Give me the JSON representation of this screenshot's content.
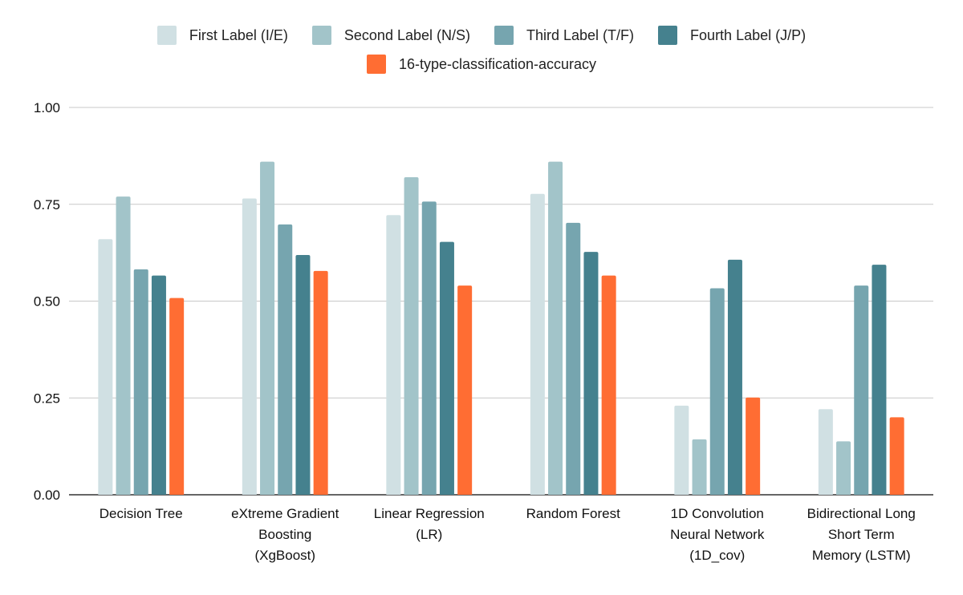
{
  "chart_data": {
    "type": "bar",
    "categories": [
      [
        "Decision Tree"
      ],
      [
        "eXtreme Gradient",
        "Boosting",
        "(XgBoost)"
      ],
      [
        "Linear Regression",
        "(LR)"
      ],
      [
        "Random Forest"
      ],
      [
        "1D Convolution",
        "Neural Network",
        "(1D_cov)"
      ],
      [
        "Bidirectional Long",
        "Short Term",
        "Memory (LSTM)"
      ]
    ],
    "series": [
      {
        "name": "First Label (I/E)",
        "color": "#d0e0e3",
        "values": [
          0.66,
          0.765,
          0.722,
          0.777,
          0.23,
          0.221
        ]
      },
      {
        "name": "Second Label (N/S)",
        "color": "#a2c4c9",
        "values": [
          0.77,
          0.86,
          0.82,
          0.86,
          0.143,
          0.138
        ]
      },
      {
        "name": "Third Label (T/F)",
        "color": "#76a5af",
        "values": [
          0.582,
          0.698,
          0.757,
          0.702,
          0.533,
          0.54
        ]
      },
      {
        "name": "Fourth Label (J/P)",
        "color": "#45818e",
        "values": [
          0.566,
          0.619,
          0.653,
          0.627,
          0.607,
          0.594
        ]
      },
      {
        "name": "16-type-classification-accuracy",
        "color": "#ff6d33",
        "values": [
          0.508,
          0.578,
          0.54,
          0.566,
          0.251,
          0.2
        ]
      }
    ],
    "yticks": [
      "0.00",
      "0.25",
      "0.50",
      "0.75",
      "1.00"
    ],
    "ylim": [
      0,
      1
    ],
    "title": "",
    "xlabel": "",
    "ylabel": "",
    "grid": true,
    "legend": "top"
  }
}
